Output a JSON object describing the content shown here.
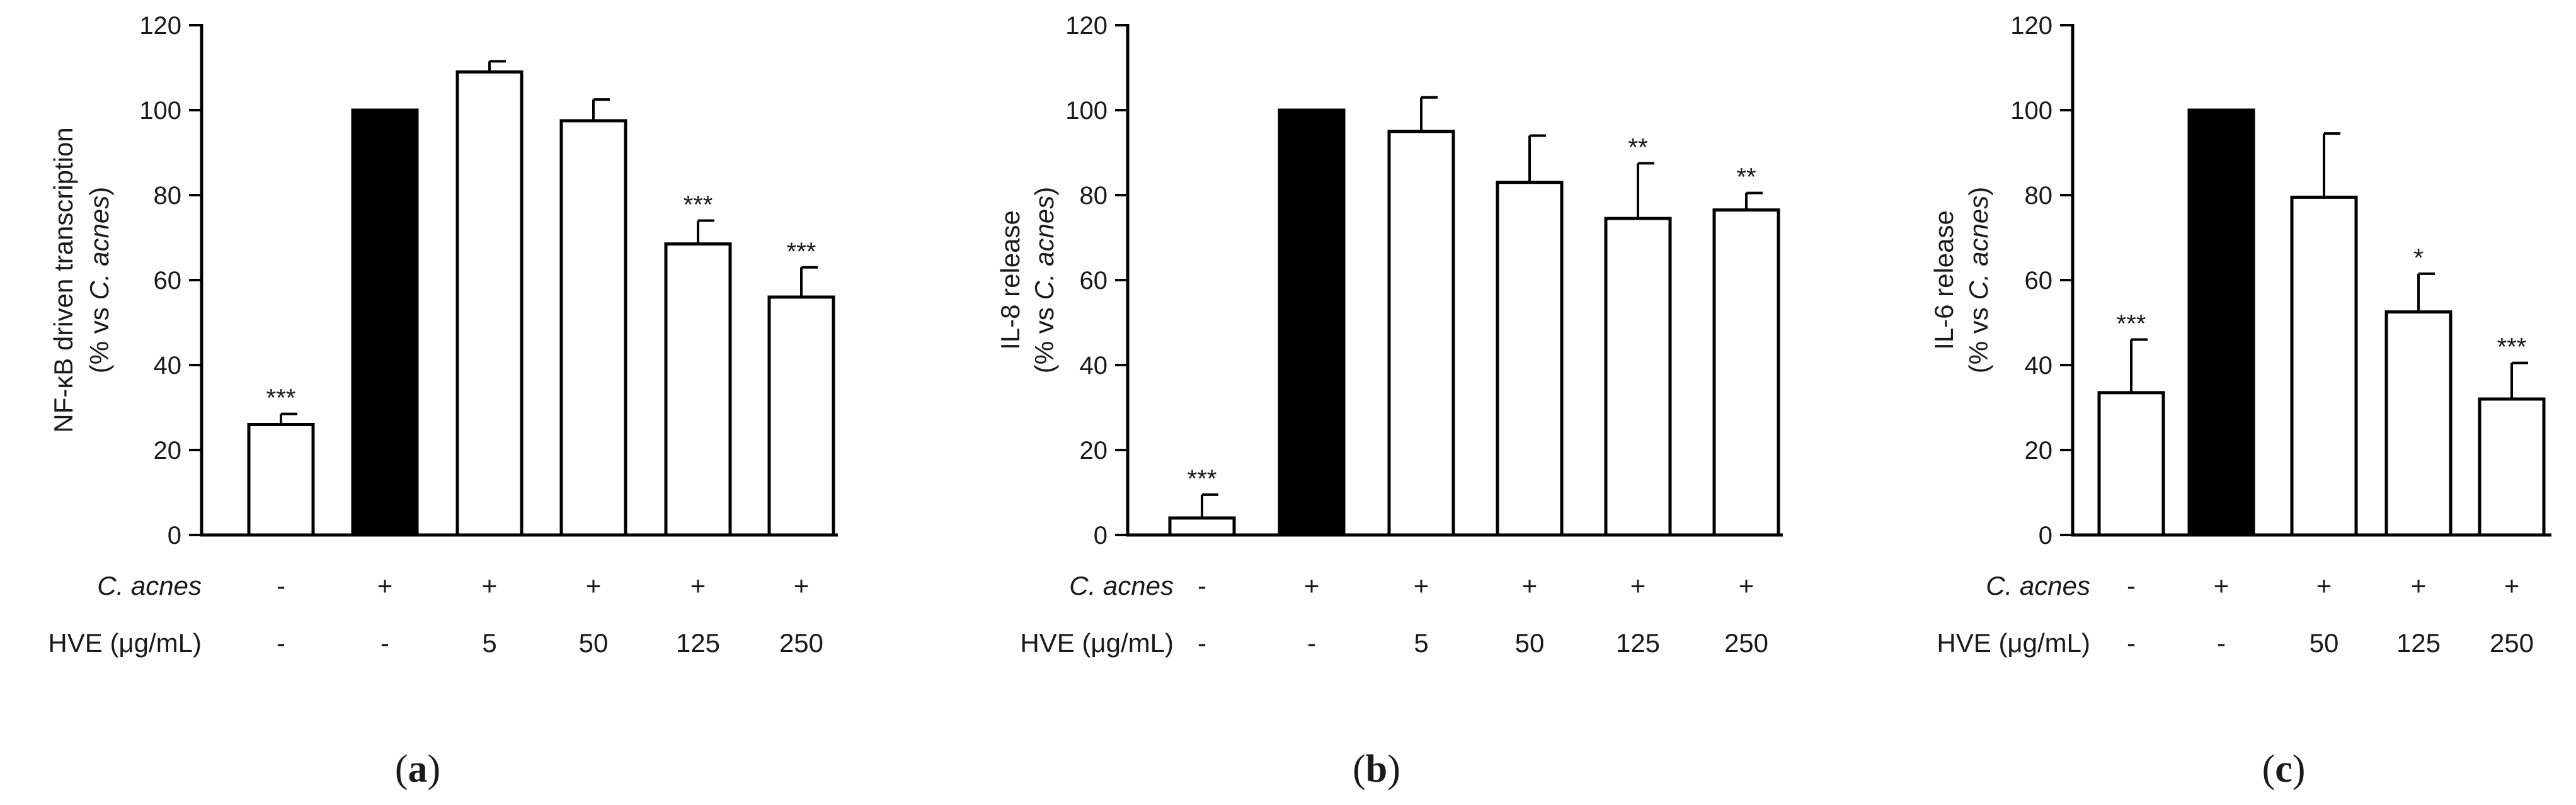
{
  "chart_data": [
    {
      "type": "bar",
      "panel_label": "(a)",
      "ylabel_line1": "NF-κB driven transcription",
      "ylabel_line2_prefix": "(% vs ",
      "ylabel_line2_italic": "C. acnes",
      "ylabel_line2_suffix": ")",
      "ylim": [
        0,
        120
      ],
      "yticks": [
        "0",
        "20",
        "40",
        "60",
        "80",
        "100",
        "120"
      ],
      "row1_label": "C. acnes",
      "row2_label": "HVE (μg/mL)",
      "bars": [
        {
          "value": 26,
          "error": 2.5,
          "filled": false,
          "sig": "***",
          "cacnes": "-",
          "hve": "-"
        },
        {
          "value": 100,
          "error": 0,
          "filled": true,
          "sig": "",
          "cacnes": "+",
          "hve": "-"
        },
        {
          "value": 109,
          "error": 2.5,
          "filled": false,
          "sig": "",
          "cacnes": "+",
          "hve": "5"
        },
        {
          "value": 97.5,
          "error": 5,
          "filled": false,
          "sig": "",
          "cacnes": "+",
          "hve": "50"
        },
        {
          "value": 68.5,
          "error": 5.5,
          "filled": false,
          "sig": "***",
          "cacnes": "+",
          "hve": "125"
        },
        {
          "value": 56,
          "error": 7,
          "filled": false,
          "sig": "***",
          "cacnes": "+",
          "hve": "250"
        }
      ]
    },
    {
      "type": "bar",
      "panel_label": "(b)",
      "ylabel_line1": "IL-8 release",
      "ylabel_line2_prefix": "(% vs ",
      "ylabel_line2_italic": "C. acnes",
      "ylabel_line2_suffix": ")",
      "ylim": [
        0,
        120
      ],
      "yticks": [
        "0",
        "20",
        "40",
        "60",
        "80",
        "100",
        "120"
      ],
      "row1_label": "C. acnes",
      "row2_label": "HVE (μg/mL)",
      "bars": [
        {
          "value": 4,
          "error": 5.5,
          "filled": false,
          "sig": "***",
          "cacnes": "-",
          "hve": "-"
        },
        {
          "value": 100,
          "error": 0,
          "filled": true,
          "sig": "",
          "cacnes": "+",
          "hve": "-"
        },
        {
          "value": 95,
          "error": 8,
          "filled": false,
          "sig": "",
          "cacnes": "+",
          "hve": "5"
        },
        {
          "value": 83,
          "error": 11,
          "filled": false,
          "sig": "",
          "cacnes": "+",
          "hve": "50"
        },
        {
          "value": 74.5,
          "error": 13,
          "filled": false,
          "sig": "**",
          "cacnes": "+",
          "hve": "125"
        },
        {
          "value": 76.5,
          "error": 4,
          "filled": false,
          "sig": "**",
          "cacnes": "+",
          "hve": "250"
        }
      ]
    },
    {
      "type": "bar",
      "panel_label": "(c)",
      "ylabel_line1": "IL-6 release",
      "ylabel_line2_prefix": "(% vs ",
      "ylabel_line2_italic": "C. acnes",
      "ylabel_line2_suffix": ")",
      "ylim": [
        0,
        120
      ],
      "yticks": [
        "0",
        "20",
        "40",
        "60",
        "80",
        "100",
        "120"
      ],
      "row1_label": "C. acnes",
      "row2_label": "HVE (μg/mL)",
      "bars": [
        {
          "value": 33.5,
          "error": 12.5,
          "filled": false,
          "sig": "***",
          "cacnes": "-",
          "hve": "-"
        },
        {
          "value": 100,
          "error": 0,
          "filled": true,
          "sig": "",
          "cacnes": "+",
          "hve": "-"
        },
        {
          "value": 79.5,
          "error": 15,
          "filled": false,
          "sig": "",
          "cacnes": "+",
          "hve": "50"
        },
        {
          "value": 52.5,
          "error": 9,
          "filled": false,
          "sig": "*",
          "cacnes": "+",
          "hve": "125"
        },
        {
          "value": 32,
          "error": 8.5,
          "filled": false,
          "sig": "***",
          "cacnes": "+",
          "hve": "250"
        }
      ]
    }
  ]
}
